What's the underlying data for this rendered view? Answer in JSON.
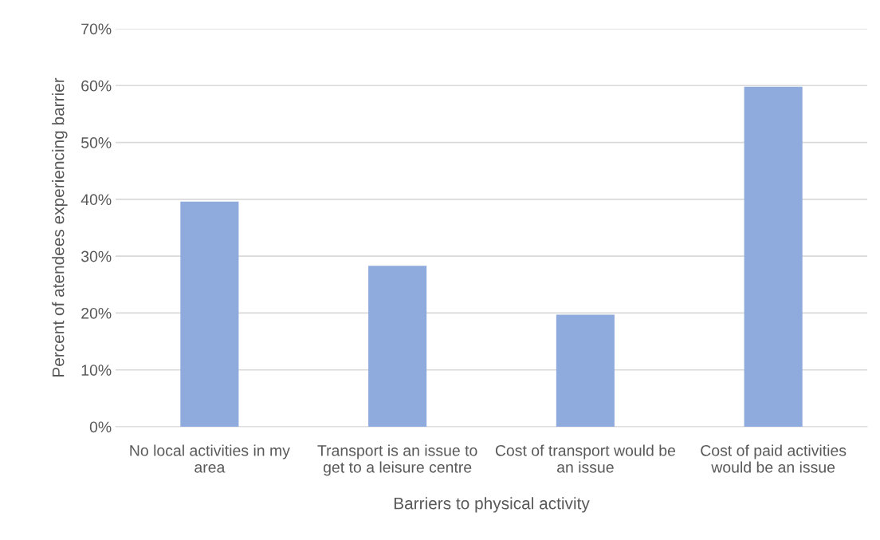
{
  "chart_data": {
    "type": "bar",
    "xlabel": "Barriers to physical activity",
    "ylabel": "Percent of atendees experiencing barrier",
    "categories": [
      "No local activities in my area",
      "Transport is an issue to get to a leisure centre",
      "Cost of transport would be an issue",
      "Cost of paid activities would be an issue"
    ],
    "values": [
      39.6,
      28.3,
      19.7,
      59.8
    ],
    "color": "#8faadc",
    "ylim": [
      0,
      70
    ],
    "yticks": [
      {
        "value": 0,
        "label": "0%"
      },
      {
        "value": 10,
        "label": "10%"
      },
      {
        "value": 20,
        "label": "20%"
      },
      {
        "value": 30,
        "label": "30%"
      },
      {
        "value": 40,
        "label": "40%"
      },
      {
        "value": 50,
        "label": "50%"
      },
      {
        "value": 60,
        "label": "60%"
      },
      {
        "value": 70,
        "label": "70%"
      }
    ],
    "grid": "y",
    "legend": false
  }
}
